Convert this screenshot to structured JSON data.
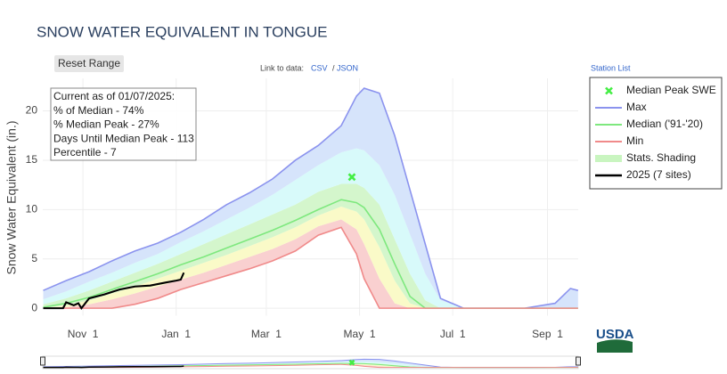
{
  "chart_data": {
    "type": "line",
    "title": "SNOW WATER EQUIVALENT IN TONGUE",
    "y_label": "Snow Water Equivalent (in.)",
    "x": [
      5,
      20,
      35,
      50,
      65,
      80,
      95,
      110,
      125,
      140,
      155,
      170,
      185,
      200,
      210,
      215,
      225,
      235,
      245,
      255,
      265,
      280,
      300,
      320,
      340,
      350,
      355
    ],
    "xlim": [
      4.7,
      355.1
    ],
    "xticks": [
      {
        "value": 31,
        "label": "Nov  1"
      },
      {
        "value": 92,
        "label": "Jan  1"
      },
      {
        "value": 151,
        "label": "Mar  1"
      },
      {
        "value": 212,
        "label": "May  1"
      },
      {
        "value": 273,
        "label": "Jul  1"
      },
      {
        "value": 335,
        "label": "Sep  1"
      }
    ],
    "ylim": [
      -0.8,
      23.3
    ],
    "yticks": [
      0,
      5,
      10,
      15,
      20
    ],
    "grid": true,
    "legend": "right",
    "series": [
      {
        "name": "Max",
        "color": "#8b93ee",
        "values": [
          1.8,
          2.8,
          3.7,
          4.8,
          5.8,
          6.6,
          7.7,
          9.0,
          10.5,
          11.7,
          13.1,
          15.0,
          16.5,
          18.5,
          21.5,
          22.3,
          21.8,
          17.5,
          12.0,
          6.5,
          1.0,
          0,
          0,
          0,
          0.5,
          2.0,
          1.8
        ]
      },
      {
        "name": "Median ('91-'20)",
        "color": "#7ee87e",
        "values": [
          0.1,
          0.5,
          1.1,
          1.9,
          2.7,
          3.5,
          4.4,
          5.2,
          6.1,
          7.0,
          7.9,
          8.9,
          10.0,
          11.0,
          10.7,
          10.2,
          8.0,
          4.5,
          1.2,
          0,
          0,
          0,
          0,
          0,
          0,
          0,
          0
        ]
      },
      {
        "name": "Min",
        "color": "#f08a8a",
        "values": [
          0,
          0,
          0,
          0,
          0.4,
          1.0,
          1.9,
          2.6,
          3.3,
          4.0,
          4.8,
          5.8,
          7.4,
          8.2,
          5.5,
          3.0,
          0,
          0,
          0,
          0,
          0,
          0,
          0,
          0,
          0,
          0,
          0
        ]
      },
      {
        "name": "2025 (7 sites)",
        "color": "#000000",
        "x": [
          5,
          18,
          20,
          25,
          28,
          30,
          35,
          45,
          55,
          65,
          75,
          85,
          92,
          95,
          97
        ],
        "values": [
          0,
          0,
          0.6,
          0.3,
          0.5,
          0,
          1.0,
          1.4,
          1.9,
          2.2,
          2.3,
          2.6,
          2.8,
          2.9,
          3.6
        ]
      }
    ],
    "shading": {
      "name": "Stats. Shading",
      "color": "#c9f5c0",
      "colors": [
        "#f9d0d0",
        "#fafac8",
        "#d4f6cc",
        "#d8fafa",
        "#d6e4fb"
      ],
      "bounds": [
        [
          0,
          0.1,
          0.4,
          0.9,
          1.5,
          2.2,
          2.9,
          3.6,
          4.4,
          5.2,
          6.0,
          7.0,
          8.3,
          9.0,
          8.0,
          6.5,
          3.0,
          0.5,
          0,
          0,
          0,
          0,
          0,
          0,
          0,
          0,
          0
        ],
        [
          0,
          0.3,
          0.8,
          1.5,
          2.2,
          3.0,
          3.8,
          4.6,
          5.4,
          6.3,
          7.2,
          8.2,
          9.4,
          10.3,
          9.8,
          9.0,
          6.2,
          2.8,
          0.5,
          0,
          0,
          0,
          0,
          0,
          0,
          0,
          0
        ],
        [
          0.4,
          1.0,
          1.8,
          2.7,
          3.6,
          4.5,
          5.5,
          6.5,
          7.5,
          8.5,
          9.5,
          10.5,
          11.8,
          12.6,
          12.6,
          12.2,
          10.5,
          7.0,
          3.5,
          0.8,
          0,
          0,
          0,
          0,
          0,
          0,
          0
        ],
        [
          0.9,
          1.7,
          2.7,
          3.6,
          4.6,
          5.5,
          6.7,
          7.8,
          9.0,
          10.2,
          11.5,
          13.0,
          14.5,
          15.8,
          16.2,
          16.0,
          14.5,
          11.5,
          7.5,
          3.5,
          0.8,
          0,
          0,
          0,
          0,
          0,
          0
        ]
      ]
    },
    "peak": {
      "name": "Median Peak SWE",
      "x": 207,
      "value": 13.3,
      "color": "#44ee44"
    },
    "annotation": [
      "Current as of 01/07/2025:",
      "% of Median - 74%",
      "% Median Peak - 27%",
      "Days Until Median Peak - 113",
      "Percentile - 7"
    ]
  },
  "controls": {
    "reset": "Reset Range",
    "link_prefix": "Link to data:",
    "csv": "CSV",
    "separator": "/",
    "json": "JSON",
    "station_list": "Station List"
  },
  "logo": "USDA"
}
